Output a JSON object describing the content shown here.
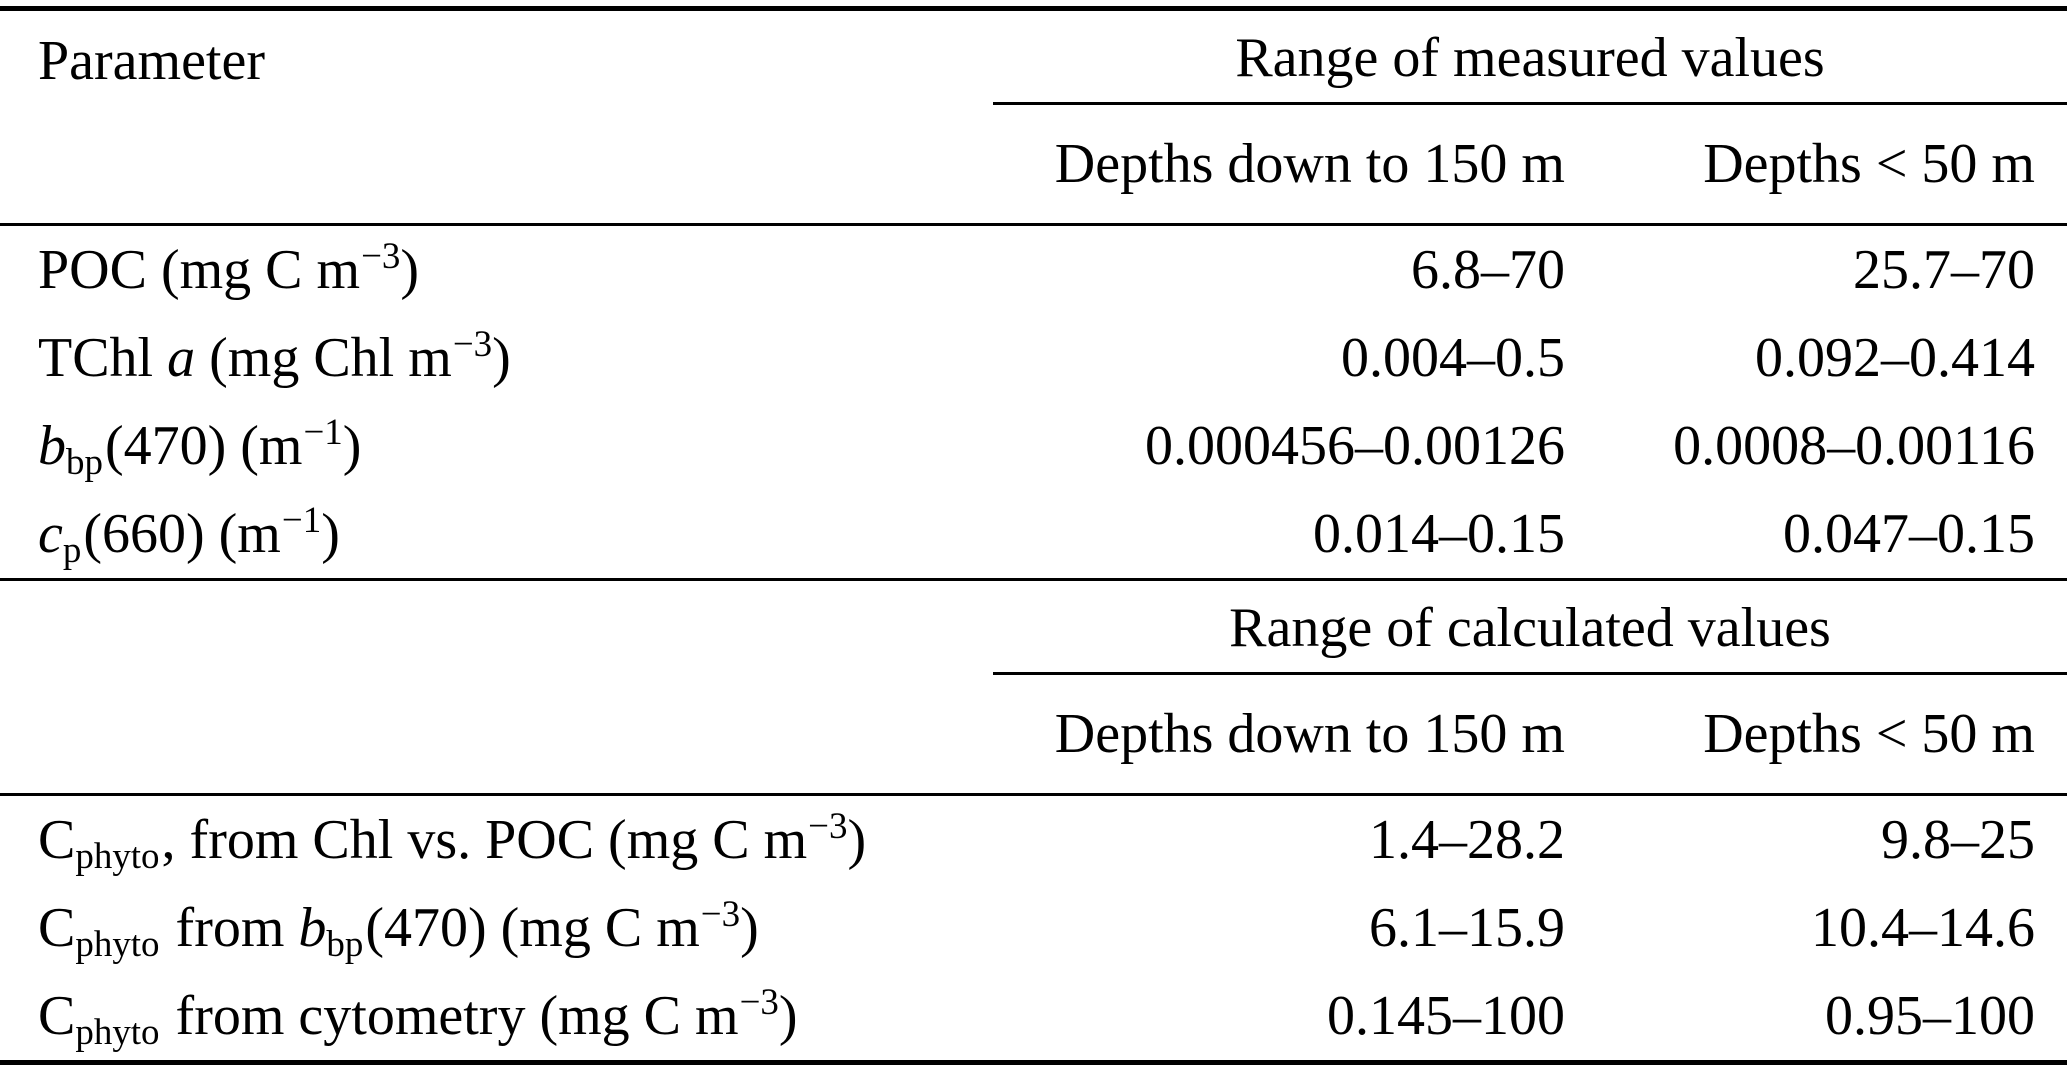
{
  "colors": {
    "text": "#000000",
    "background": "#ffffff",
    "rule": "#000000"
  },
  "table": {
    "corner_header": "Parameter",
    "sections": [
      {
        "group_header": "Range of measured values",
        "subheaders": [
          "Depths down to 150 m",
          "Depths < 50 m"
        ],
        "rows": [
          {
            "label": [
              {
                "t": "POC (mg C m",
                "s": "n"
              },
              {
                "t": "−3",
                "s": "sup"
              },
              {
                "t": ")",
                "s": "n"
              }
            ],
            "label_plain": "POC (mg C m−3)",
            "values": [
              "6.8–70",
              "25.7–70"
            ]
          },
          {
            "label": [
              {
                "t": "TChl ",
                "s": "n"
              },
              {
                "t": "a",
                "s": "i"
              },
              {
                "t": " (mg Chl m",
                "s": "n"
              },
              {
                "t": "−3",
                "s": "sup"
              },
              {
                "t": ")",
                "s": "n"
              }
            ],
            "label_plain": "TChl a (mg Chl m−3)",
            "values": [
              "0.004–0.5",
              "0.092–0.414"
            ]
          },
          {
            "label": [
              {
                "t": "b",
                "s": "i"
              },
              {
                "t": "bp",
                "s": "sub"
              },
              {
                "t": "(470) (m",
                "s": "n"
              },
              {
                "t": "−1",
                "s": "sup"
              },
              {
                "t": ")",
                "s": "n"
              }
            ],
            "label_plain": "bbp(470) (m−1)",
            "values": [
              "0.000456–0.00126",
              "0.0008–0.00116"
            ]
          },
          {
            "label": [
              {
                "t": "c",
                "s": "i"
              },
              {
                "t": "p",
                "s": "sub"
              },
              {
                "t": "(660) (m",
                "s": "n"
              },
              {
                "t": "−1",
                "s": "sup"
              },
              {
                "t": ")",
                "s": "n"
              }
            ],
            "label_plain": "cp(660) (m−1)",
            "values": [
              "0.014–0.15",
              "0.047–0.15"
            ]
          }
        ]
      },
      {
        "group_header": "Range of calculated values",
        "subheaders": [
          "Depths down to 150 m",
          "Depths < 50 m"
        ],
        "rows": [
          {
            "label": [
              {
                "t": "C",
                "s": "n"
              },
              {
                "t": "phyto",
                "s": "sub"
              },
              {
                "t": ", from Chl vs. POC (mg C m",
                "s": "n"
              },
              {
                "t": "−3",
                "s": "sup"
              },
              {
                "t": ")",
                "s": "n"
              }
            ],
            "label_plain": "Cphyto, from Chl vs. POC (mg C m−3)",
            "values": [
              "1.4–28.2",
              "9.8–25"
            ]
          },
          {
            "label": [
              {
                "t": "C",
                "s": "n"
              },
              {
                "t": "phyto",
                "s": "sub"
              },
              {
                "t": " from ",
                "s": "n"
              },
              {
                "t": "b",
                "s": "i"
              },
              {
                "t": "bp",
                "s": "sub"
              },
              {
                "t": "(470) (mg C m",
                "s": "n"
              },
              {
                "t": "−3",
                "s": "sup"
              },
              {
                "t": ")",
                "s": "n"
              }
            ],
            "label_plain": "Cphyto from bbp(470) (mg C m−3)",
            "values": [
              "6.1–15.9",
              "10.4–14.6"
            ]
          },
          {
            "label": [
              {
                "t": "C",
                "s": "n"
              },
              {
                "t": "phyto",
                "s": "sub"
              },
              {
                "t": " from cytometry (mg C m",
                "s": "n"
              },
              {
                "t": "−3",
                "s": "sup"
              },
              {
                "t": ")",
                "s": "n"
              }
            ],
            "label_plain": "Cphyto from cytometry (mg C m−3)",
            "values": [
              "0.145–100",
              "0.95–100"
            ]
          }
        ]
      }
    ]
  }
}
